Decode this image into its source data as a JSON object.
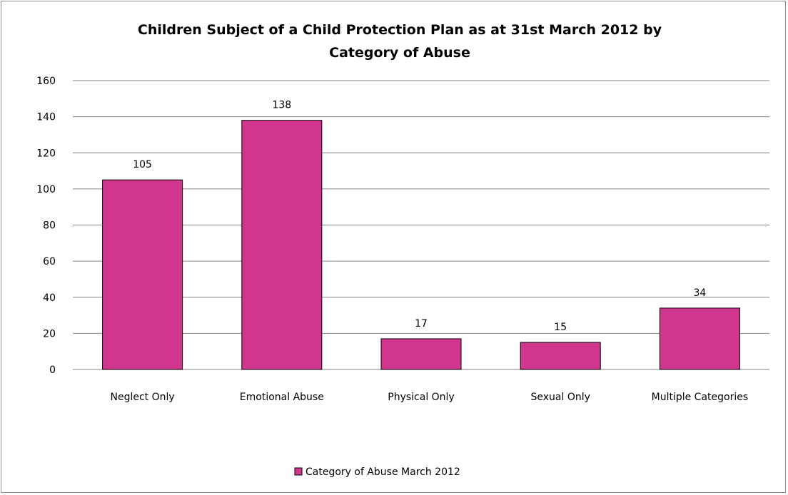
{
  "chart_data": {
    "type": "bar",
    "title_lines": [
      "Children Subject of a Child Protection Plan as at 31st March 2012 by",
      "Category of Abuse"
    ],
    "categories": [
      "Neglect Only",
      "Emotional Abuse",
      "Physical Only",
      "Sexual Only",
      "Multiple Categories"
    ],
    "series": [
      {
        "name": "Category of Abuse March 2012",
        "values": [
          105,
          138,
          17,
          15,
          34
        ],
        "color": "#d1368e"
      }
    ],
    "ylim": [
      0,
      160
    ],
    "yticks": [
      0,
      20,
      40,
      60,
      80,
      100,
      120,
      140,
      160
    ],
    "data_labels": [
      "105",
      "138",
      "17",
      "15",
      "34"
    ],
    "grid": true,
    "legend_position": "bottom"
  }
}
